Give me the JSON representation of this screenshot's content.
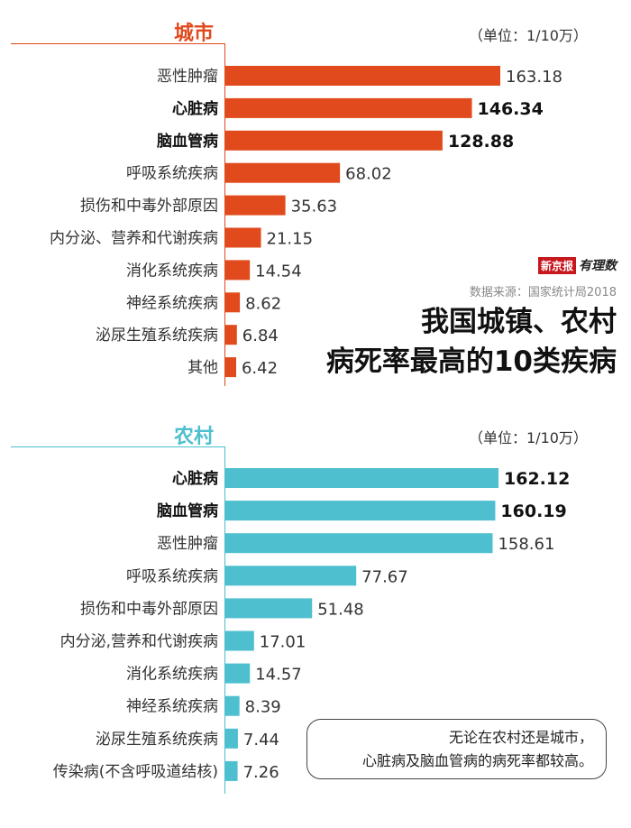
{
  "title": [
    "我国城镇、农村",
    "病死率最高的10类疾病"
  ],
  "source": "数据来源：国家统计局2018",
  "logo": {
    "red_text": "新京报",
    "script_text": "有理数"
  },
  "note": [
    "无论在农村还是城市，",
    "心脏病及脑血管病的病死率都较高。"
  ],
  "colors": {
    "city": "#e04a1c",
    "rural": "#4dbfcf"
  },
  "chart_data": [
    {
      "type": "bar",
      "title": "城市",
      "unit": "（单位：1/10万）",
      "categories": [
        "恶性肿瘤",
        "心脏病",
        "脑血管病",
        "呼吸系统疾病",
        "损伤和中毒外部原因",
        "内分泌、营养和代谢疾病",
        "消化系统疾病",
        "神经系统疾病",
        "泌尿生殖系统疾病",
        "其他"
      ],
      "values": [
        163.18,
        146.34,
        128.88,
        68.02,
        35.63,
        21.15,
        14.54,
        8.62,
        6.84,
        6.42
      ],
      "labels": [
        "163.18",
        "146.34",
        "128.88",
        "68.02",
        "35.63",
        "21.15",
        "14.54",
        "8.62",
        "6.84",
        "6.42"
      ],
      "bold": [
        false,
        true,
        true,
        false,
        false,
        false,
        false,
        false,
        false,
        false
      ]
    },
    {
      "type": "bar",
      "title": "农村",
      "unit": "（单位：1/10万）",
      "categories": [
        "心脏病",
        "脑血管病",
        "恶性肿瘤",
        "呼吸系统疾病",
        "损伤和中毒外部原因",
        "内分泌,营养和代谢疾病",
        "消化系统疾病",
        "神经系统疾病",
        "泌尿生殖系统疾病",
        "传染病(不含呼吸道结核)"
      ],
      "values": [
        162.12,
        160.19,
        158.61,
        77.67,
        51.48,
        17.01,
        14.57,
        8.39,
        7.44,
        7.26
      ],
      "labels": [
        "162.12",
        "160.19",
        "158.61",
        "77.67",
        "51.48",
        "17.01",
        "14.57",
        "8.39",
        "7.44",
        "7.26"
      ],
      "bold": [
        true,
        true,
        false,
        false,
        false,
        false,
        false,
        false,
        false,
        false
      ]
    }
  ]
}
